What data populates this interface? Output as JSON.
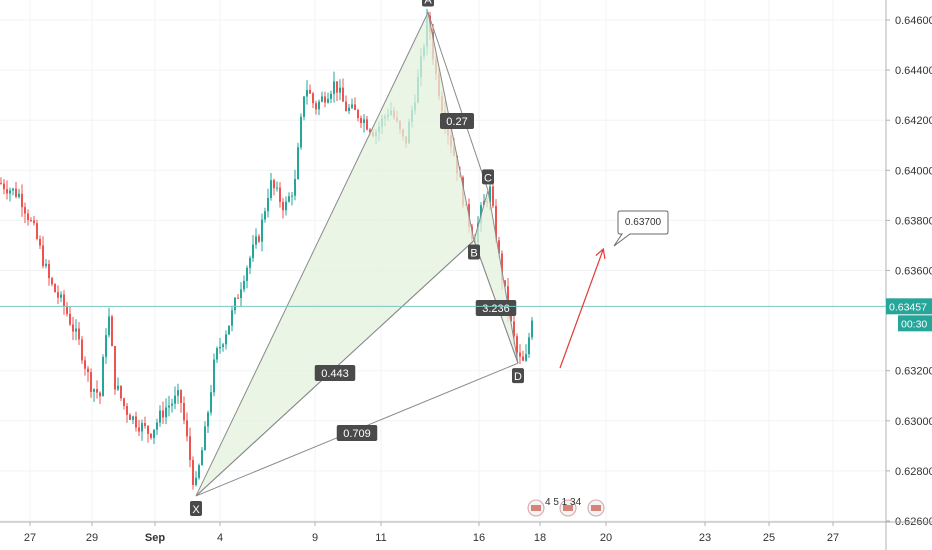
{
  "chart_data": {
    "type": "candlestick",
    "instrument_axis": {
      "y_ticks": [
        "0.64600",
        "0.64400",
        "0.64200",
        "0.64000",
        "0.63800",
        "0.63600",
        "0.63200",
        "0.63000",
        "0.62800",
        "0.62600"
      ],
      "ylim": [
        0.626,
        0.647
      ]
    },
    "x_labels": [
      "27",
      "29",
      "Sep",
      "4",
      "9",
      "11",
      "16",
      "18",
      "20",
      "23",
      "25",
      "27"
    ],
    "colors": {
      "up": "#26a69a",
      "down": "#ef5350",
      "pattern_fill": "#e3f2dd",
      "pattern_line": "#8a8a8a",
      "label_bg": "#4a4a4a",
      "arrow": "#e53935",
      "price_line": "#79c7c1",
      "price_tag": "#26a69a",
      "countdown_tag": "#26a69a"
    },
    "current_price": {
      "value": 0.63457,
      "label": "0.63457",
      "countdown": "00:30"
    },
    "pattern": {
      "points": [
        {
          "name": "X",
          "price": 0.627
        },
        {
          "name": "A",
          "price": 0.6463
        },
        {
          "name": "B",
          "price": 0.6372
        },
        {
          "name": "C",
          "price": 0.6392
        },
        {
          "name": "D",
          "price": 0.6323
        }
      ],
      "ratios": {
        "xb": "0.443",
        "ac": "0.27",
        "bd": "3.236",
        "xd": "0.709"
      }
    },
    "target": {
      "value": 0.637,
      "label": "0.63700"
    },
    "events_label": "4  5  1  34"
  }
}
